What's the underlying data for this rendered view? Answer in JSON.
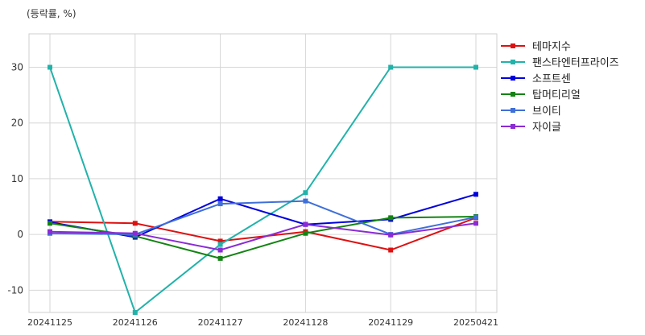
{
  "unit_label": "(등락률, %)",
  "chart_data": {
    "type": "line",
    "x": [
      "20241125",
      "20241126",
      "20241127",
      "20241128",
      "20241129",
      "20250421"
    ],
    "ylim": [
      -14,
      36
    ],
    "yticks": [
      -10,
      0,
      10,
      20,
      30
    ],
    "grid": true,
    "legend_position": "right-outside-top",
    "series": [
      {
        "name": "테마지수",
        "color": "#dd1111",
        "values": [
          2.3,
          2.0,
          -1.2,
          0.5,
          -2.8,
          3.0
        ]
      },
      {
        "name": "팬스타엔터프라이즈",
        "color": "#22b2aa",
        "values": [
          30.0,
          -14.0,
          -1.8,
          7.5,
          30.0,
          30.0
        ]
      },
      {
        "name": "소프트센",
        "color": "#0000dd",
        "values": [
          2.2,
          -0.5,
          6.4,
          1.8,
          2.7,
          7.2
        ]
      },
      {
        "name": "탑머티리얼",
        "color": "#138313",
        "values": [
          2.0,
          -0.3,
          -4.3,
          0.2,
          3.0,
          3.2
        ]
      },
      {
        "name": "브이티",
        "color": "#3f6fd8",
        "values": [
          0.2,
          0.0,
          5.5,
          6.0,
          0.0,
          3.1
        ]
      },
      {
        "name": "자이글",
        "color": "#8a2bd4",
        "values": [
          0.5,
          0.2,
          -2.8,
          1.8,
          -0.1,
          2.0
        ]
      }
    ]
  }
}
